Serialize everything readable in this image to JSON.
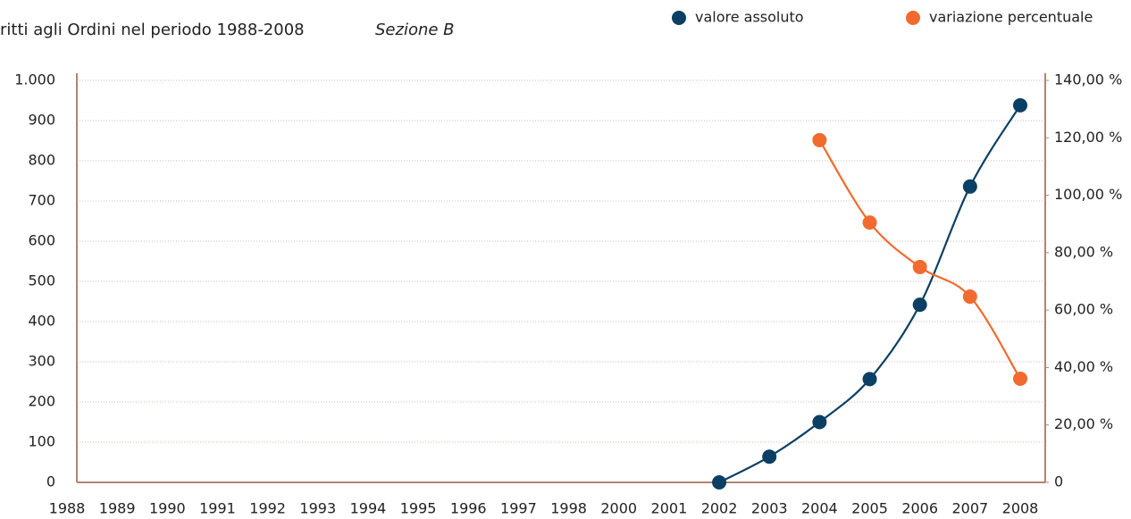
{
  "chart_data": {
    "type": "line",
    "title": "ritti agli Ordini nel periodo 1988-2008",
    "subtitle": "Sezione B",
    "categories": [
      "1988",
      "1989",
      "1990",
      "1991",
      "1992",
      "1993",
      "1994",
      "1995",
      "1996",
      "1997",
      "1998",
      "2000",
      "2001",
      "2002",
      "2003",
      "2004",
      "2005",
      "2006",
      "2007",
      "2008"
    ],
    "series": [
      {
        "name": "valore assoluto",
        "color": "#0b3f63",
        "values": [
          null,
          null,
          null,
          null,
          null,
          null,
          null,
          null,
          null,
          null,
          null,
          null,
          null,
          0,
          64,
          150,
          257,
          442,
          736,
          938
        ]
      },
      {
        "name": "variazione percentuale",
        "color": "#f26a2e",
        "axis": "y2",
        "values": [
          null,
          null,
          null,
          null,
          null,
          null,
          null,
          null,
          null,
          null,
          null,
          null,
          null,
          null,
          null,
          119.2,
          90.5,
          75,
          64.7,
          36.1
        ]
      }
    ],
    "ylim": [
      0,
      1000
    ],
    "yticks": [
      0,
      100,
      200,
      300,
      400,
      500,
      600,
      700,
      800,
      900,
      {
        "value": 1000,
        "label": "1.000"
      }
    ],
    "y2lim": [
      0,
      140
    ],
    "y2ticks": [
      0,
      {
        "value": 20,
        "label": "20,00 %"
      },
      {
        "value": 40,
        "label": "40,00 %"
      },
      {
        "value": 60,
        "label": "60,00 %"
      },
      {
        "value": 80,
        "label": "80,00 %"
      },
      {
        "value": 100,
        "label": "100,00 %"
      },
      {
        "value": 120,
        "label": "120,00 %"
      },
      {
        "value": 140,
        "label": "140,00 %"
      }
    ],
    "grid": true,
    "legend": "top-right"
  }
}
